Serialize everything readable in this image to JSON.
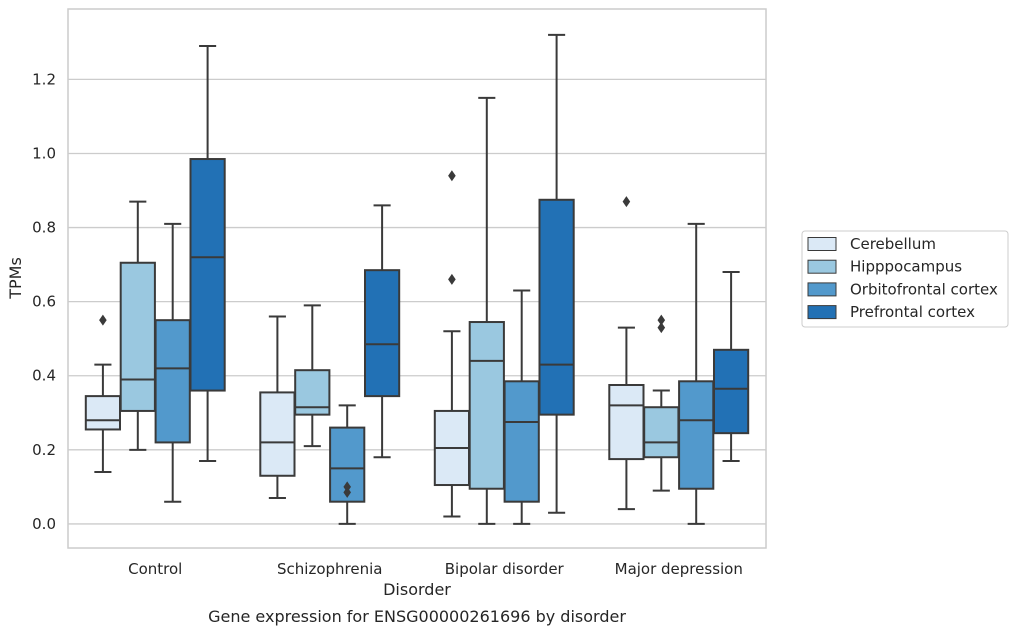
{
  "chart_data": {
    "type": "box",
    "caption": "Gene expression for ENSG00000261696 by disorder",
    "xlabel": "Disorder",
    "ylabel": "TPMs",
    "ylim": [
      -0.065,
      1.39
    ],
    "yticks": [
      0.0,
      0.2,
      0.4,
      0.6,
      0.8,
      1.0,
      1.2
    ],
    "ytick_labels": [
      "0.0",
      "0.2",
      "0.4",
      "0.6",
      "0.8",
      "1.0",
      "1.2"
    ],
    "categories": [
      "Control",
      "Schizophrenia",
      "Bipolar disorder",
      "Major depression"
    ],
    "grid": "horizontal",
    "legend_position": "right",
    "series": [
      {
        "name": "Cerebellum",
        "color": "#dbe9f6",
        "boxes": [
          {
            "whislo": 0.14,
            "q1": 0.255,
            "med": 0.28,
            "q3": 0.345,
            "whishi": 0.43,
            "fliers": [
              0.55
            ]
          },
          {
            "whislo": 0.07,
            "q1": 0.13,
            "med": 0.22,
            "q3": 0.355,
            "whishi": 0.56,
            "fliers": []
          },
          {
            "whislo": 0.02,
            "q1": 0.105,
            "med": 0.205,
            "q3": 0.305,
            "whishi": 0.52,
            "fliers": [
              0.66,
              0.94
            ]
          },
          {
            "whislo": 0.04,
            "q1": 0.175,
            "med": 0.32,
            "q3": 0.375,
            "whishi": 0.53,
            "fliers": [
              0.87
            ]
          }
        ]
      },
      {
        "name": "Hipppocampus",
        "color": "#9ac8e0",
        "boxes": [
          {
            "whislo": 0.2,
            "q1": 0.305,
            "med": 0.39,
            "q3": 0.705,
            "whishi": 0.87,
            "fliers": []
          },
          {
            "whislo": 0.21,
            "q1": 0.295,
            "med": 0.315,
            "q3": 0.415,
            "whishi": 0.59,
            "fliers": []
          },
          {
            "whislo": 0.0,
            "q1": 0.095,
            "med": 0.44,
            "q3": 0.545,
            "whishi": 1.15,
            "fliers": []
          },
          {
            "whislo": 0.09,
            "q1": 0.18,
            "med": 0.22,
            "q3": 0.315,
            "whishi": 0.36,
            "fliers": [
              0.53,
              0.55
            ]
          }
        ]
      },
      {
        "name": "Orbitofrontal cortex",
        "color": "#5299cc",
        "boxes": [
          {
            "whislo": 0.06,
            "q1": 0.22,
            "med": 0.42,
            "q3": 0.55,
            "whishi": 0.81,
            "fliers": []
          },
          {
            "whislo": 0.0,
            "q1": 0.06,
            "med": 0.15,
            "q3": 0.26,
            "whishi": 0.32,
            "fliers": [
              0.085,
              0.1
            ]
          },
          {
            "whislo": 0.0,
            "q1": 0.06,
            "med": 0.275,
            "q3": 0.385,
            "whishi": 0.63,
            "fliers": []
          },
          {
            "whislo": 0.0,
            "q1": 0.095,
            "med": 0.28,
            "q3": 0.385,
            "whishi": 0.81,
            "fliers": []
          }
        ]
      },
      {
        "name": "Prefrontal cortex",
        "color": "#2271b5",
        "boxes": [
          {
            "whislo": 0.17,
            "q1": 0.36,
            "med": 0.72,
            "q3": 0.985,
            "whishi": 1.29,
            "fliers": []
          },
          {
            "whislo": 0.18,
            "q1": 0.345,
            "med": 0.485,
            "q3": 0.685,
            "whishi": 0.86,
            "fliers": []
          },
          {
            "whislo": 0.03,
            "q1": 0.295,
            "med": 0.43,
            "q3": 0.875,
            "whishi": 1.32,
            "fliers": []
          },
          {
            "whislo": 0.17,
            "q1": 0.245,
            "med": 0.365,
            "q3": 0.47,
            "whishi": 0.68,
            "fliers": []
          }
        ]
      }
    ]
  },
  "colors": {
    "grid": "#cccccc",
    "frame": "#cccccc",
    "box_edge": "#3a3a3a",
    "text": "#262626"
  }
}
